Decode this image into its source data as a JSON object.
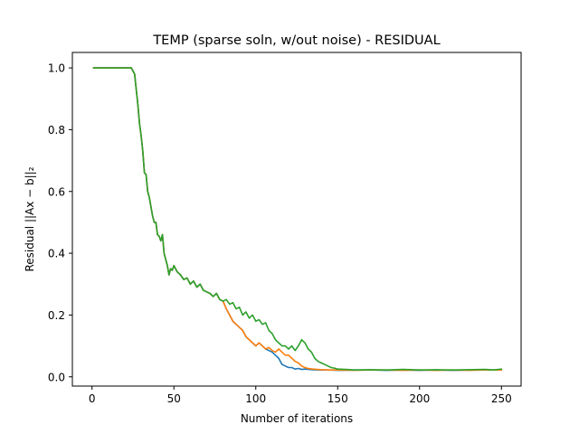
{
  "chart_data": {
    "type": "line",
    "title": "TEMP (sparse soln, w/out noise) - RESIDUAL",
    "xlabel": "Number of iterations",
    "ylabel": "Residual ||Ax − b||₂",
    "xlim": [
      -12,
      262
    ],
    "ylim": [
      -0.03,
      1.05
    ],
    "xticks": [
      0,
      50,
      100,
      150,
      200,
      250
    ],
    "yticks": [
      0.0,
      0.2,
      0.4,
      0.6,
      0.8,
      1.0
    ],
    "xtick_labels": [
      "0",
      "50",
      "100",
      "150",
      "200",
      "250"
    ],
    "ytick_labels": [
      "0.0",
      "0.2",
      "0.4",
      "0.6",
      "0.8",
      "1.0"
    ],
    "grid": false,
    "legend": "none",
    "series": [
      {
        "color": "#1f77b4",
        "x": [
          1,
          5,
          10,
          15,
          20,
          24,
          26,
          27,
          28,
          29,
          30,
          31,
          32,
          33,
          34,
          35,
          36,
          37,
          38,
          39,
          40,
          41,
          42,
          43,
          44,
          45,
          46,
          47,
          48,
          49,
          50,
          52,
          54,
          56,
          58,
          60,
          62,
          64,
          66,
          68,
          70,
          72,
          74,
          76,
          78,
          80,
          82,
          84,
          86,
          88,
          90,
          92,
          94,
          96,
          98,
          100,
          102,
          104,
          106,
          108,
          110,
          112,
          114,
          116,
          118,
          120,
          122,
          124,
          126,
          128,
          130,
          135,
          140,
          145,
          150,
          160,
          170,
          180,
          190,
          200,
          210,
          220,
          230,
          240,
          245,
          250
        ],
        "y": [
          1.0,
          1.0,
          1.0,
          1.0,
          1.0,
          1.0,
          0.98,
          0.93,
          0.88,
          0.82,
          0.78,
          0.73,
          0.66,
          0.655,
          0.6,
          0.58,
          0.55,
          0.52,
          0.5,
          0.5,
          0.46,
          0.455,
          0.44,
          0.46,
          0.4,
          0.38,
          0.36,
          0.33,
          0.35,
          0.345,
          0.36,
          0.34,
          0.33,
          0.315,
          0.32,
          0.3,
          0.31,
          0.29,
          0.3,
          0.28,
          0.275,
          0.27,
          0.26,
          0.27,
          0.25,
          0.245,
          0.22,
          0.2,
          0.18,
          0.17,
          0.16,
          0.15,
          0.13,
          0.12,
          0.11,
          0.1,
          0.11,
          0.1,
          0.09,
          0.085,
          0.08,
          0.07,
          0.06,
          0.04,
          0.035,
          0.03,
          0.03,
          0.025,
          0.027,
          0.024,
          0.025,
          0.023,
          0.022,
          0.022,
          0.021,
          0.022,
          0.022,
          0.021,
          0.022,
          0.021,
          0.022,
          0.021,
          0.022,
          0.022,
          0.022,
          0.022
        ]
      },
      {
        "color": "#ff7f0e",
        "x": [
          1,
          5,
          10,
          15,
          20,
          24,
          26,
          27,
          28,
          29,
          30,
          31,
          32,
          33,
          34,
          35,
          36,
          37,
          38,
          39,
          40,
          41,
          42,
          43,
          44,
          45,
          46,
          47,
          48,
          49,
          50,
          52,
          54,
          56,
          58,
          60,
          62,
          64,
          66,
          68,
          70,
          72,
          74,
          76,
          78,
          80,
          82,
          84,
          86,
          88,
          90,
          92,
          94,
          96,
          98,
          100,
          102,
          104,
          106,
          108,
          110,
          112,
          114,
          116,
          118,
          120,
          122,
          124,
          126,
          128,
          130,
          132,
          135,
          140,
          145,
          150,
          160,
          170,
          180,
          190,
          200,
          210,
          220,
          230,
          240,
          245,
          250
        ],
        "y": [
          1.0,
          1.0,
          1.0,
          1.0,
          1.0,
          1.0,
          0.98,
          0.93,
          0.88,
          0.82,
          0.78,
          0.73,
          0.66,
          0.655,
          0.6,
          0.58,
          0.55,
          0.52,
          0.5,
          0.5,
          0.46,
          0.455,
          0.44,
          0.46,
          0.4,
          0.38,
          0.36,
          0.33,
          0.35,
          0.345,
          0.36,
          0.34,
          0.33,
          0.315,
          0.32,
          0.3,
          0.31,
          0.29,
          0.3,
          0.28,
          0.275,
          0.27,
          0.26,
          0.27,
          0.25,
          0.245,
          0.22,
          0.2,
          0.18,
          0.17,
          0.16,
          0.15,
          0.13,
          0.12,
          0.11,
          0.1,
          0.11,
          0.1,
          0.09,
          0.095,
          0.085,
          0.08,
          0.09,
          0.08,
          0.07,
          0.07,
          0.06,
          0.05,
          0.045,
          0.035,
          0.03,
          0.027,
          0.025,
          0.023,
          0.022,
          0.022,
          0.021,
          0.022,
          0.022,
          0.021,
          0.022,
          0.021,
          0.022,
          0.021,
          0.022,
          0.022,
          0.022
        ]
      },
      {
        "color": "#2ca02c",
        "x": [
          1,
          5,
          10,
          15,
          20,
          24,
          26,
          27,
          28,
          29,
          30,
          31,
          32,
          33,
          34,
          35,
          36,
          37,
          38,
          39,
          40,
          41,
          42,
          43,
          44,
          45,
          46,
          47,
          48,
          49,
          50,
          52,
          54,
          56,
          58,
          60,
          62,
          64,
          66,
          68,
          70,
          72,
          74,
          76,
          78,
          80,
          82,
          84,
          86,
          88,
          90,
          92,
          94,
          96,
          98,
          100,
          102,
          104,
          106,
          108,
          110,
          112,
          114,
          116,
          118,
          120,
          122,
          124,
          126,
          128,
          130,
          132,
          134,
          136,
          138,
          140,
          142,
          144,
          146,
          148,
          150,
          155,
          160,
          170,
          180,
          190,
          200,
          210,
          220,
          230,
          240,
          245,
          250
        ],
        "y": [
          1.0,
          1.0,
          1.0,
          1.0,
          1.0,
          1.0,
          0.98,
          0.93,
          0.88,
          0.82,
          0.78,
          0.73,
          0.66,
          0.655,
          0.6,
          0.58,
          0.55,
          0.52,
          0.5,
          0.5,
          0.46,
          0.455,
          0.44,
          0.46,
          0.4,
          0.38,
          0.36,
          0.33,
          0.35,
          0.345,
          0.36,
          0.34,
          0.33,
          0.315,
          0.32,
          0.3,
          0.31,
          0.29,
          0.3,
          0.28,
          0.275,
          0.27,
          0.26,
          0.27,
          0.25,
          0.245,
          0.25,
          0.235,
          0.24,
          0.22,
          0.225,
          0.2,
          0.21,
          0.19,
          0.2,
          0.18,
          0.185,
          0.17,
          0.175,
          0.15,
          0.14,
          0.12,
          0.11,
          0.1,
          0.1,
          0.09,
          0.1,
          0.085,
          0.1,
          0.12,
          0.11,
          0.09,
          0.08,
          0.06,
          0.05,
          0.045,
          0.04,
          0.035,
          0.03,
          0.028,
          0.025,
          0.024,
          0.022,
          0.023,
          0.022,
          0.024,
          0.022,
          0.023,
          0.022,
          0.023,
          0.024,
          0.022,
          0.025
        ]
      }
    ]
  }
}
